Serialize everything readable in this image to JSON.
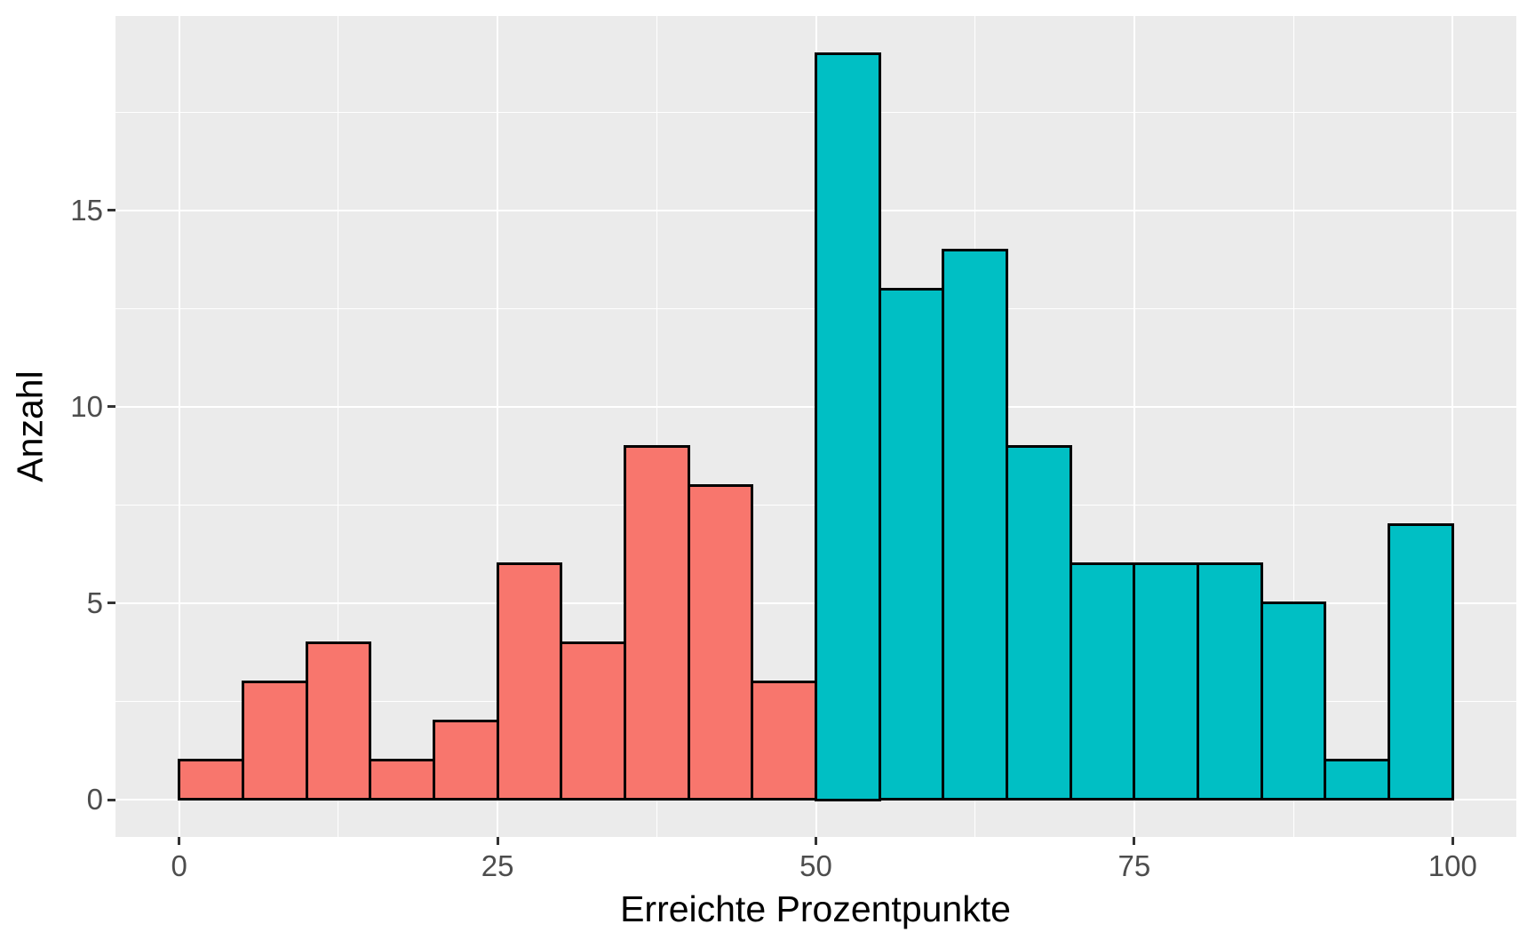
{
  "chart_data": {
    "type": "bar",
    "subtype": "histogram",
    "title": "",
    "xlabel": "Erreichte Prozentpunkte",
    "ylabel": "Anzahl",
    "bin_width": 5,
    "bin_start": 0,
    "bin_edges": [
      0,
      5,
      10,
      15,
      20,
      25,
      30,
      35,
      40,
      45,
      50,
      55,
      60,
      65,
      70,
      75,
      80,
      85,
      90,
      95,
      100
    ],
    "counts": [
      1,
      3,
      4,
      1,
      2,
      6,
      4,
      9,
      8,
      3,
      19,
      13,
      14,
      9,
      6,
      6,
      6,
      5,
      1,
      7
    ],
    "color_split_at": 50,
    "color_below_split": "#F8766D",
    "color_from_split": "#00BFC4",
    "bar_border_color": "#000000",
    "x_ticks": [
      0,
      25,
      50,
      75,
      100
    ],
    "y_ticks": [
      0,
      5,
      10,
      15
    ],
    "x_minor_gridlines": [
      12.5,
      37.5,
      62.5,
      87.5
    ],
    "y_minor_gridlines": [
      2.5,
      7.5,
      12.5,
      17.5
    ],
    "xlim": [
      -5,
      105
    ],
    "ylim": [
      -0.95,
      19.95
    ],
    "legend": "none",
    "grid": "on",
    "panel_bg": "#EBEBEB",
    "grid_color": "#FFFFFF",
    "tick_mark_color": "#333333",
    "tick_label_color": "#4D4D4D",
    "axis_title_color": "#000000"
  }
}
